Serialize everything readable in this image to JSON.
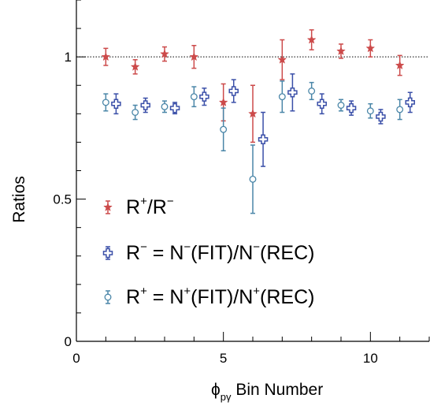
{
  "chart_data": {
    "type": "scatter",
    "xlabel_main": "ϕ",
    "xlabel_sub": "pγ",
    "xlabel_rest": " Bin Number",
    "ylabel": "Ratios",
    "xlim": [
      0,
      12
    ],
    "ylim": [
      0,
      1.2
    ],
    "xticks": [
      0,
      5,
      10
    ],
    "yticks": [
      0,
      0.5,
      1
    ],
    "reference_line": 1,
    "grid": false,
    "legend_position": "lower-left",
    "series": [
      {
        "key": "rpm",
        "marker": "star",
        "color": "#cc4a4a",
        "legend": {
          "a": "R",
          "a_sup": "+",
          "b": "/R",
          "b_sup": "−"
        },
        "points": [
          {
            "x": 1,
            "y": 1.0,
            "err": 0.03
          },
          {
            "x": 2,
            "y": 0.965,
            "err": 0.025
          },
          {
            "x": 3,
            "y": 1.01,
            "err": 0.025
          },
          {
            "x": 4,
            "y": 1.0,
            "err": 0.04
          },
          {
            "x": 5,
            "y": 0.84,
            "err": 0.065
          },
          {
            "x": 6,
            "y": 0.8,
            "err": 0.1
          },
          {
            "x": 7,
            "y": 0.99,
            "err": 0.07
          },
          {
            "x": 8,
            "y": 1.06,
            "err": 0.035
          },
          {
            "x": 9,
            "y": 1.02,
            "err": 0.025
          },
          {
            "x": 10,
            "y": 1.03,
            "err": 0.03
          },
          {
            "x": 11,
            "y": 0.97,
            "err": 0.035
          }
        ]
      },
      {
        "key": "rminus",
        "marker": "cross",
        "color": "#3a4fa8",
        "legend": {
          "a": "R",
          "a_sup": "−",
          "b": " = N",
          "b_sup": "−",
          "c": "(FIT)/N",
          "c_sup": "−",
          "d": "(REC)"
        },
        "points": [
          {
            "x": 1.35,
            "y": 0.835,
            "err": 0.035
          },
          {
            "x": 2.35,
            "y": 0.83,
            "err": 0.025
          },
          {
            "x": 3.35,
            "y": 0.82,
            "err": 0.02
          },
          {
            "x": 4.35,
            "y": 0.86,
            "err": 0.03
          },
          {
            "x": 5.35,
            "y": 0.88,
            "err": 0.04
          },
          {
            "x": 6.35,
            "y": 0.71,
            "err": 0.095
          },
          {
            "x": 7.35,
            "y": 0.875,
            "err": 0.065
          },
          {
            "x": 8.35,
            "y": 0.835,
            "err": 0.035
          },
          {
            "x": 9.35,
            "y": 0.82,
            "err": 0.025
          },
          {
            "x": 10.35,
            "y": 0.79,
            "err": 0.025
          },
          {
            "x": 11.35,
            "y": 0.84,
            "err": 0.035
          }
        ]
      },
      {
        "key": "rplus",
        "marker": "circle",
        "color": "#4a86a8",
        "legend": {
          "a": "R",
          "a_sup": "+",
          "b": " = N",
          "b_sup": "+",
          "c": "(FIT)/N",
          "c_sup": "+",
          "d": "(REC)"
        },
        "points": [
          {
            "x": 1,
            "y": 0.84,
            "err": 0.03
          },
          {
            "x": 2,
            "y": 0.805,
            "err": 0.025
          },
          {
            "x": 3,
            "y": 0.825,
            "err": 0.02
          },
          {
            "x": 4,
            "y": 0.86,
            "err": 0.035
          },
          {
            "x": 5,
            "y": 0.745,
            "err": 0.075
          },
          {
            "x": 6,
            "y": 0.57,
            "err": 0.12
          },
          {
            "x": 7,
            "y": 0.86,
            "err": 0.055
          },
          {
            "x": 8,
            "y": 0.88,
            "err": 0.03
          },
          {
            "x": 9,
            "y": 0.83,
            "err": 0.02
          },
          {
            "x": 10,
            "y": 0.81,
            "err": 0.025
          },
          {
            "x": 11,
            "y": 0.815,
            "err": 0.035
          }
        ]
      }
    ]
  }
}
